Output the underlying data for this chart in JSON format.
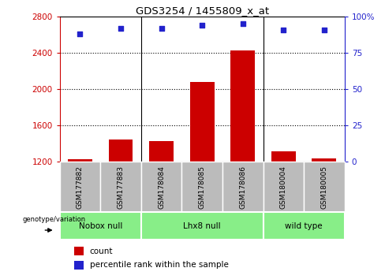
{
  "title": "GDS3254 / 1455809_x_at",
  "samples": [
    "GSM177882",
    "GSM177883",
    "GSM178084",
    "GSM178085",
    "GSM178086",
    "GSM180004",
    "GSM180005"
  ],
  "counts": [
    1230,
    1450,
    1430,
    2080,
    2430,
    1320,
    1240
  ],
  "percentiles": [
    88,
    92,
    92,
    94,
    95,
    91,
    91
  ],
  "ylim_left": [
    1200,
    2800
  ],
  "ylim_right": [
    0,
    100
  ],
  "yticks_left": [
    1200,
    1600,
    2000,
    2400,
    2800
  ],
  "yticks_right": [
    0,
    25,
    50,
    75,
    100
  ],
  "bar_color": "#cc0000",
  "dot_color": "#2222cc",
  "groups": [
    {
      "label": "Nobox null",
      "start": 0,
      "end": 1,
      "color": "#88ee88"
    },
    {
      "label": "Lhx8 null",
      "start": 2,
      "end": 4,
      "color": "#88ee88"
    },
    {
      "label": "wild type",
      "start": 5,
      "end": 6,
      "color": "#88ee88"
    }
  ],
  "right_axis_color": "#2222cc",
  "left_axis_color": "#cc0000",
  "tick_bg_color": "#bbbbbb",
  "genotype_label": "genotype/variation"
}
